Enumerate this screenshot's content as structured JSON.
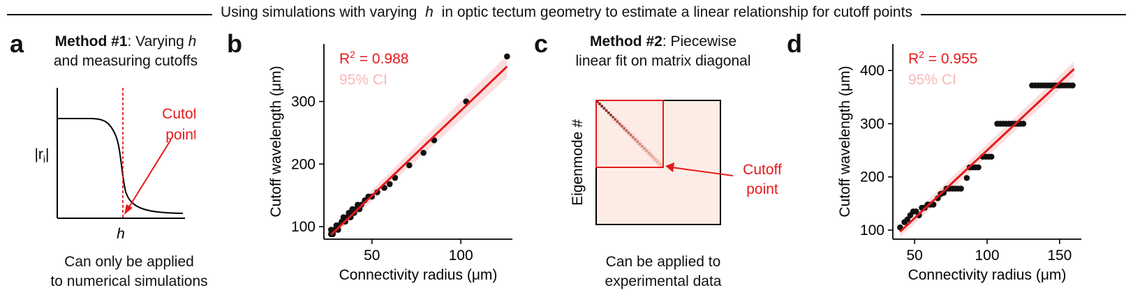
{
  "header": {
    "title_pre": "Using simulations with varying ",
    "title_italic": "h",
    "title_post": " in optic tectum geometry to estimate a linear relationship for cutoff points"
  },
  "panel_a": {
    "letter": "a",
    "title_bold": "Method #1",
    "title_rest1": ": Varying ",
    "title_italic": "h",
    "title_line2": "and measuring cutoffs",
    "ylabel": "|r",
    "ylabel_sub": "i",
    "ylabel_end": "|",
    "xlabel": "h",
    "annotation_line1": "Cutoff",
    "annotation_line2": "point",
    "caption_line1": "Can only be applied",
    "caption_line2": "to numerical simulations"
  },
  "panel_b": {
    "letter": "b"
  },
  "panel_c": {
    "letter": "c",
    "title_bold": "Method #2",
    "title_rest1": ": Piecewise",
    "title_line2": "linear fit on matrix diagonal",
    "ylabel": "Eigenmode #",
    "annotation_line1": "Cutoff",
    "annotation_line2": "point",
    "caption_line1": "Can be applied to",
    "caption_line2": "experimental data"
  },
  "panel_d": {
    "letter": "d"
  },
  "chart_data": [
    {
      "type": "scatter",
      "panel": "b",
      "xlabel": "Connectivity radius (μm)",
      "ylabel": "Cutoff wavelength (μm)",
      "xlim": [
        23,
        129
      ],
      "ylim": [
        80,
        392
      ],
      "xticks": [
        50,
        100
      ],
      "yticks": [
        100,
        200,
        300
      ],
      "r2_label": "R",
      "r2_sup": "2",
      "r2_value": " = 0.988",
      "ci_label": "95% CI",
      "fit": {
        "x": [
          27,
          126
        ],
        "y": [
          87,
          356
        ]
      },
      "ci_halfwidth": [
        6,
        18
      ],
      "points": [
        [
          27,
          88
        ],
        [
          27,
          95
        ],
        [
          28,
          88
        ],
        [
          29,
          95
        ],
        [
          30,
          102
        ],
        [
          31,
          95
        ],
        [
          31,
          102
        ],
        [
          33,
          108
        ],
        [
          34,
          115
        ],
        [
          35,
          108
        ],
        [
          36,
          115
        ],
        [
          37,
          122
        ],
        [
          38,
          115
        ],
        [
          39,
          128
        ],
        [
          40,
          122
        ],
        [
          41,
          128
        ],
        [
          42,
          135
        ],
        [
          43,
          128
        ],
        [
          44,
          135
        ],
        [
          46,
          142
        ],
        [
          48,
          148
        ],
        [
          50,
          148
        ],
        [
          53,
          155
        ],
        [
          57,
          162
        ],
        [
          60,
          168
        ],
        [
          63,
          178
        ],
        [
          71,
          198
        ],
        [
          79,
          218
        ],
        [
          85,
          238
        ],
        [
          103,
          300
        ],
        [
          126,
          372
        ]
      ]
    },
    {
      "type": "heatmap",
      "panel": "c",
      "description_only": false,
      "ylabel": "Eigenmode #"
    },
    {
      "type": "scatter",
      "panel": "d",
      "xlabel": "Connectivity radius (μm)",
      "ylabel": "Cutoff wavelength (μm)",
      "xlim": [
        35,
        165
      ],
      "ylim": [
        83,
        450
      ],
      "xticks": [
        50,
        100,
        150
      ],
      "yticks": [
        100,
        200,
        300,
        400
      ],
      "r2_label": "R",
      "r2_sup": "2",
      "r2_value": " = 0.955",
      "ci_label": "95% CI",
      "fit": {
        "x": [
          40,
          160
        ],
        "y": [
          97,
          403
        ]
      },
      "ci_halfwidth": [
        10,
        14
      ],
      "points": [
        [
          40,
          105
        ],
        [
          43,
          115
        ],
        [
          45,
          120
        ],
        [
          47,
          128
        ],
        [
          49,
          135
        ],
        [
          51,
          135
        ],
        [
          53,
          128
        ],
        [
          55,
          142
        ],
        [
          57,
          142
        ],
        [
          59,
          148
        ],
        [
          61,
          148
        ],
        [
          63,
          148
        ],
        [
          66,
          160
        ],
        [
          68,
          168
        ],
        [
          70,
          170
        ],
        [
          72,
          178
        ],
        [
          74,
          178
        ],
        [
          76,
          178
        ],
        [
          78,
          178
        ],
        [
          80,
          178
        ],
        [
          82,
          178
        ],
        [
          86,
          198
        ],
        [
          88,
          218
        ],
        [
          90,
          218
        ],
        [
          92,
          218
        ],
        [
          94,
          218
        ],
        [
          97,
          238
        ],
        [
          99,
          238
        ],
        [
          101,
          238
        ],
        [
          103,
          238
        ],
        [
          107,
          300
        ],
        [
          109,
          300
        ],
        [
          111,
          300
        ],
        [
          113,
          300
        ],
        [
          115,
          300
        ],
        [
          117,
          300
        ],
        [
          119,
          300
        ],
        [
          121,
          300
        ],
        [
          123,
          300
        ],
        [
          125,
          300
        ],
        [
          131,
          372
        ],
        [
          133,
          372
        ],
        [
          135,
          372
        ],
        [
          137,
          372
        ],
        [
          139,
          372
        ],
        [
          141,
          372
        ],
        [
          143,
          372
        ],
        [
          145,
          372
        ],
        [
          147,
          372
        ],
        [
          149,
          372
        ],
        [
          151,
          372
        ],
        [
          153,
          372
        ],
        [
          155,
          372
        ],
        [
          157,
          372
        ],
        [
          159,
          372
        ]
      ]
    }
  ]
}
